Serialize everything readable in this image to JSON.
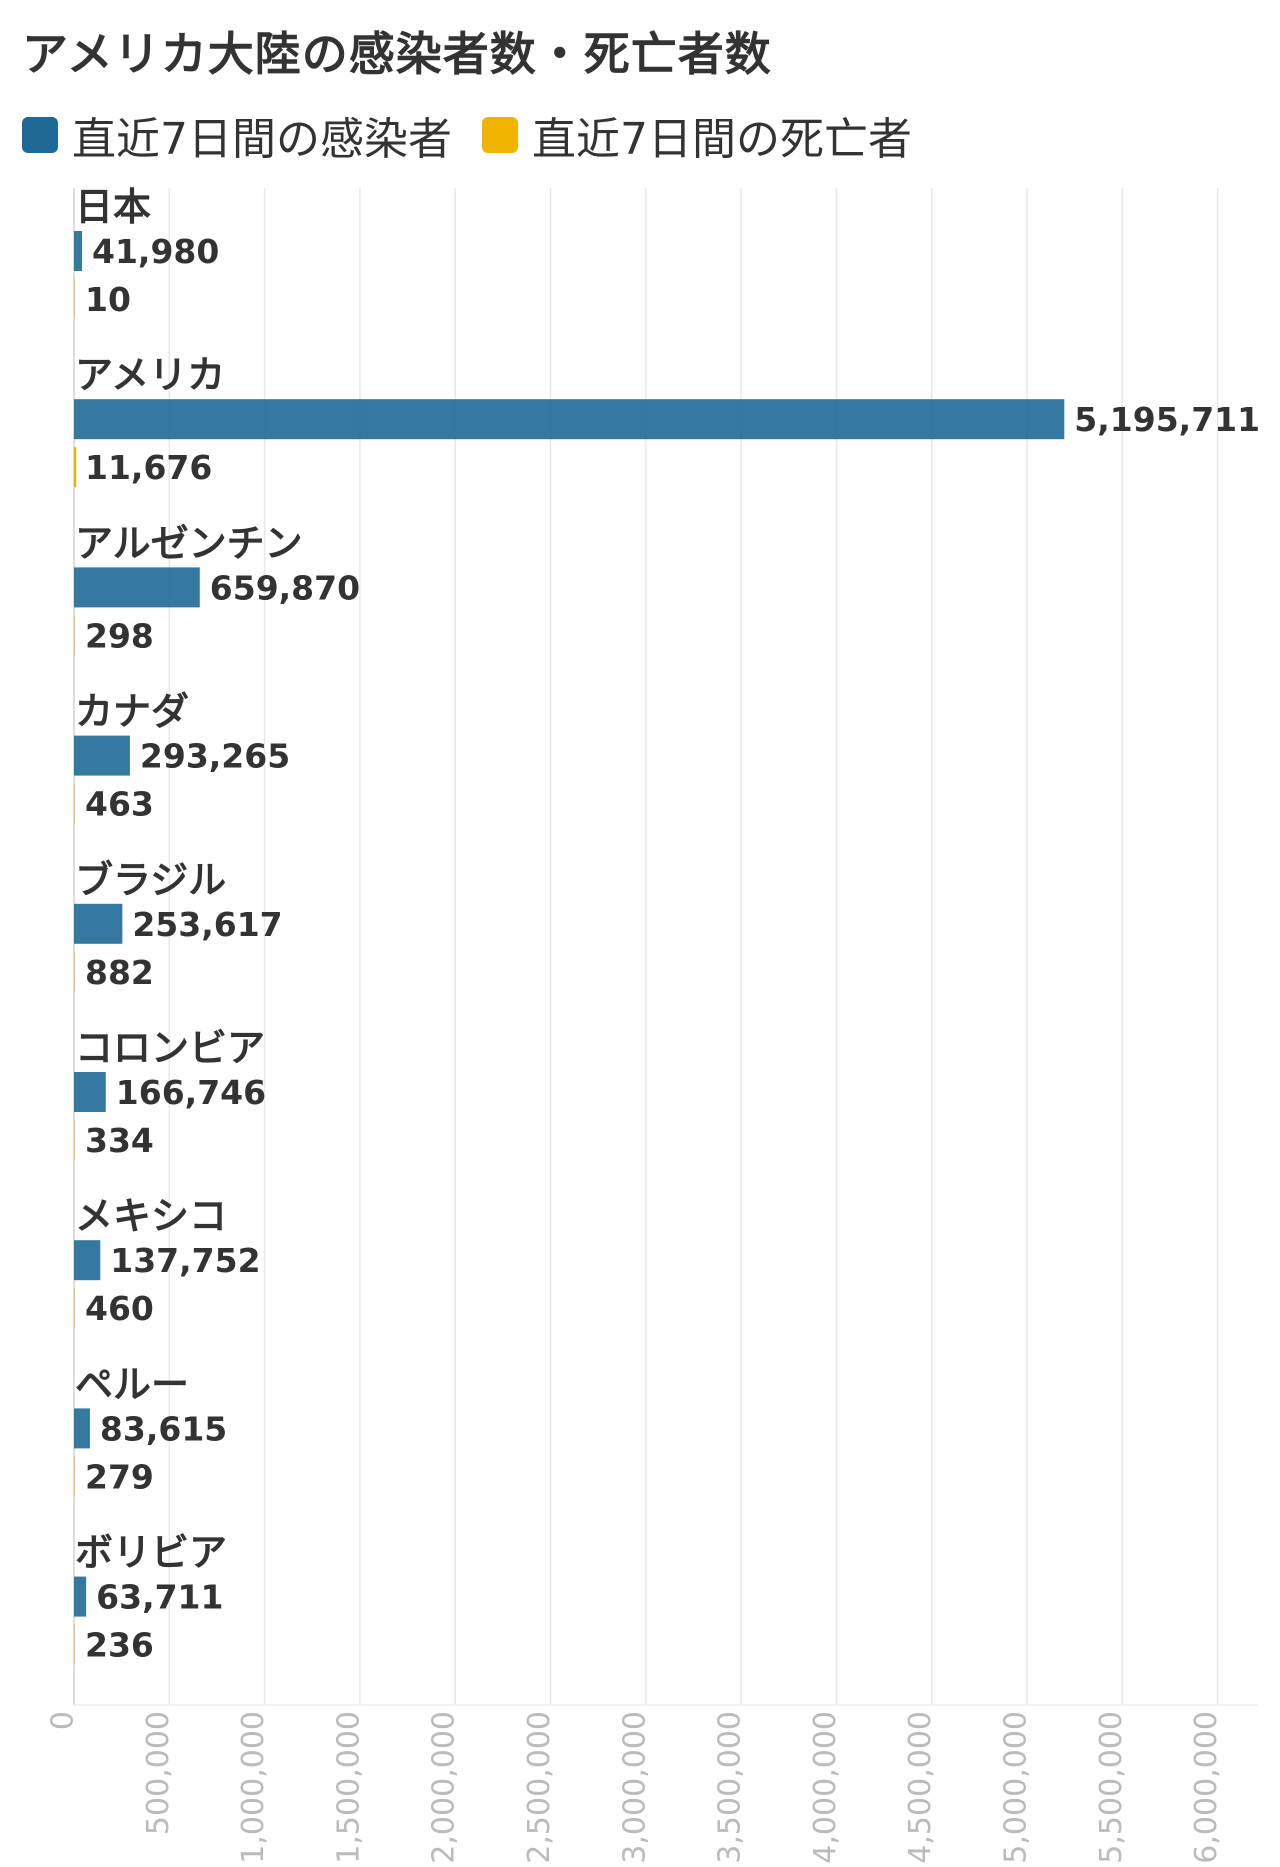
{
  "chart_data": {
    "type": "bar",
    "orientation": "horizontal",
    "title": "アメリカ大陸の感染者数・死亡者数",
    "categories": [
      "日本",
      "アメリカ",
      "アルゼンチン",
      "カナダ",
      "ブラジル",
      "コロンビア",
      "メキシコ",
      "ペルー",
      "ボリビア"
    ],
    "series": [
      {
        "name": "直近7日間の感染者",
        "color": "#1f6996",
        "values": [
          41980,
          5195711,
          659870,
          293265,
          253617,
          166746,
          137752,
          83615,
          63711
        ],
        "labels": [
          "41,980",
          "5,195,711",
          "659,870",
          "293,265",
          "253,617",
          "166,746",
          "137,752",
          "83,615",
          "63,711"
        ]
      },
      {
        "name": "直近7日間の死亡者",
        "color": "#f0b400",
        "values": [
          10,
          11676,
          298,
          463,
          882,
          334,
          460,
          279,
          236
        ],
        "labels": [
          "10",
          "11,676",
          "298",
          "463",
          "882",
          "334",
          "460",
          "279",
          "236"
        ]
      }
    ],
    "xlim": [
      0,
      6200000
    ],
    "x_ticks": [
      0,
      500000,
      1000000,
      1500000,
      2000000,
      2500000,
      3000000,
      3500000,
      4000000,
      4500000,
      5000000,
      5500000,
      6000000
    ],
    "x_tick_labels": [
      "0",
      "500,000",
      "1,000,000",
      "1,500,000",
      "2,000,000",
      "2,500,000",
      "3,000,000",
      "3,500,000",
      "4,000,000",
      "4,500,000",
      "5,000,000",
      "5,500,000",
      "6,000,000"
    ],
    "grid": true,
    "legend_position": "top-left"
  }
}
